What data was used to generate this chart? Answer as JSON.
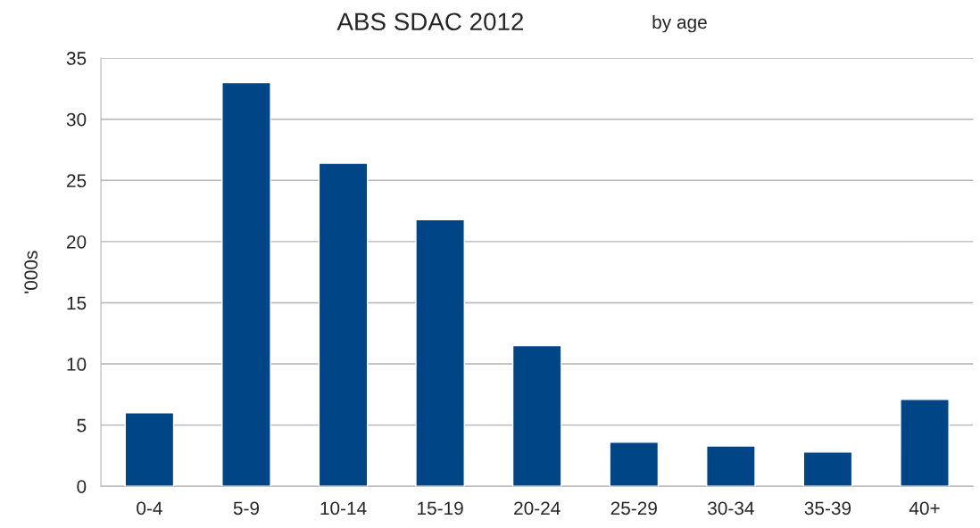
{
  "chart_data": {
    "type": "bar",
    "title": "ABS SDAC 2012",
    "subtitle": "by age",
    "ylabel": "'000s",
    "categories": [
      "0-4",
      "5-9",
      "10-14",
      "15-19",
      "20-24",
      "25-29",
      "30-34",
      "35-39",
      "40+"
    ],
    "values": [
      6.0,
      33.0,
      26.4,
      21.8,
      11.5,
      3.6,
      3.3,
      2.8,
      7.1
    ],
    "color": "#004586",
    "ylim": [
      0,
      35
    ],
    "yticks": [
      0,
      5,
      10,
      15,
      20,
      25,
      30,
      35
    ],
    "grid": "y",
    "legend": false
  }
}
